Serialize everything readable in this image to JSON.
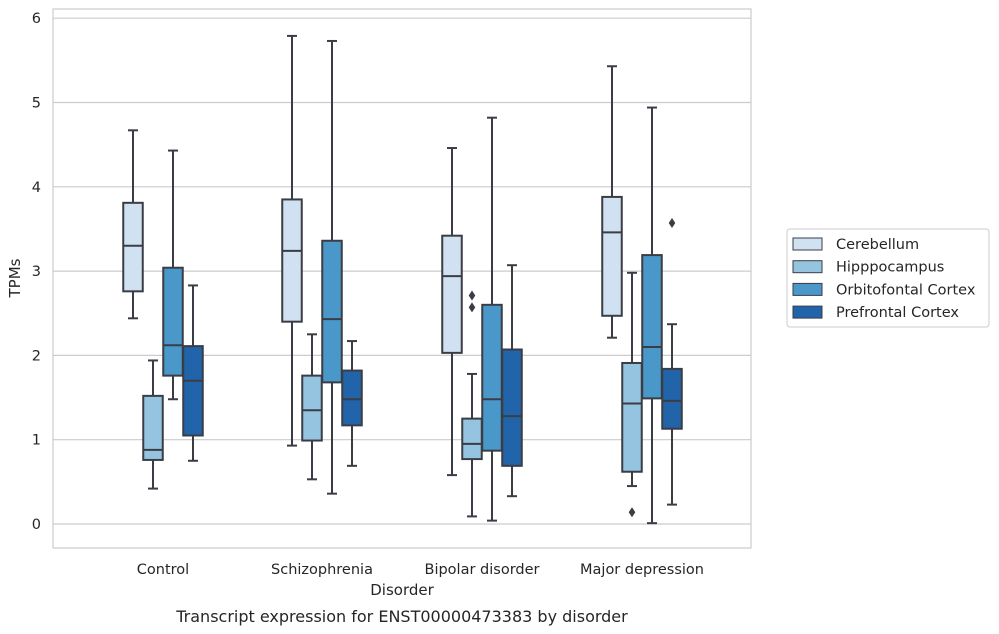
{
  "chart_data": {
    "type": "boxplot",
    "caption": "Transcript expression for ENST00000473383 by disorder",
    "xlabel": "Disorder",
    "ylabel": "TPMs",
    "ylim": [
      -0.28,
      6.1
    ],
    "yticks": [
      "0",
      "1",
      "2",
      "3",
      "4",
      "5",
      "6"
    ],
    "grid": "horizontal",
    "legend_position": "right",
    "categories": [
      "Control",
      "Schizophrenia",
      "Bipolar disorder",
      "Major depression"
    ],
    "series": [
      {
        "name": "Cerebellum",
        "color": "#d0e1f2",
        "boxes": [
          {
            "whislo": 2.44,
            "q1": 2.76,
            "med": 3.3,
            "q3": 3.81,
            "whishi": 4.67,
            "fliers": []
          },
          {
            "whislo": 0.93,
            "q1": 2.4,
            "med": 3.24,
            "q3": 3.85,
            "whishi": 5.79,
            "fliers": []
          },
          {
            "whislo": 0.58,
            "q1": 2.03,
            "med": 2.94,
            "q3": 3.42,
            "whishi": 4.46,
            "fliers": []
          },
          {
            "whislo": 2.21,
            "q1": 2.47,
            "med": 3.46,
            "q3": 3.88,
            "whishi": 5.43,
            "fliers": []
          }
        ]
      },
      {
        "name": "Hipppocampus",
        "color": "#94c4df",
        "boxes": [
          {
            "whislo": 0.42,
            "q1": 0.76,
            "med": 0.88,
            "q3": 1.52,
            "whishi": 1.94,
            "fliers": []
          },
          {
            "whislo": 0.53,
            "q1": 0.99,
            "med": 1.35,
            "q3": 1.76,
            "whishi": 2.25,
            "fliers": []
          },
          {
            "whislo": 0.09,
            "q1": 0.77,
            "med": 0.95,
            "q3": 1.25,
            "whishi": 1.78,
            "fliers": [
              2.71,
              2.57
            ]
          },
          {
            "whislo": 0.45,
            "q1": 0.62,
            "med": 1.43,
            "q3": 1.91,
            "whishi": 2.98,
            "fliers": [
              0.14
            ]
          }
        ]
      },
      {
        "name": "Orbitofontal Cortex",
        "color": "#4a98c9",
        "boxes": [
          {
            "whislo": 1.48,
            "q1": 1.76,
            "med": 2.12,
            "q3": 3.04,
            "whishi": 4.43,
            "fliers": []
          },
          {
            "whislo": 0.36,
            "q1": 1.68,
            "med": 2.43,
            "q3": 3.36,
            "whishi": 5.73,
            "fliers": []
          },
          {
            "whislo": 0.04,
            "q1": 0.87,
            "med": 1.48,
            "q3": 2.6,
            "whishi": 4.82,
            "fliers": []
          },
          {
            "whislo": 0.01,
            "q1": 1.49,
            "med": 2.1,
            "q3": 3.19,
            "whishi": 4.94,
            "fliers": []
          }
        ]
      },
      {
        "name": "Prefrontal Cortex",
        "color": "#2264aa",
        "boxes": [
          {
            "whislo": 0.75,
            "q1": 1.05,
            "med": 1.7,
            "q3": 2.11,
            "whishi": 2.83,
            "fliers": []
          },
          {
            "whislo": 0.69,
            "q1": 1.17,
            "med": 1.48,
            "q3": 1.82,
            "whishi": 2.17,
            "fliers": []
          },
          {
            "whislo": 0.33,
            "q1": 0.69,
            "med": 1.28,
            "q3": 2.07,
            "whishi": 3.07,
            "fliers": []
          },
          {
            "whislo": 0.23,
            "q1": 1.13,
            "med": 1.46,
            "q3": 1.84,
            "whishi": 2.37,
            "fliers": [
              3.57
            ]
          }
        ]
      }
    ]
  }
}
